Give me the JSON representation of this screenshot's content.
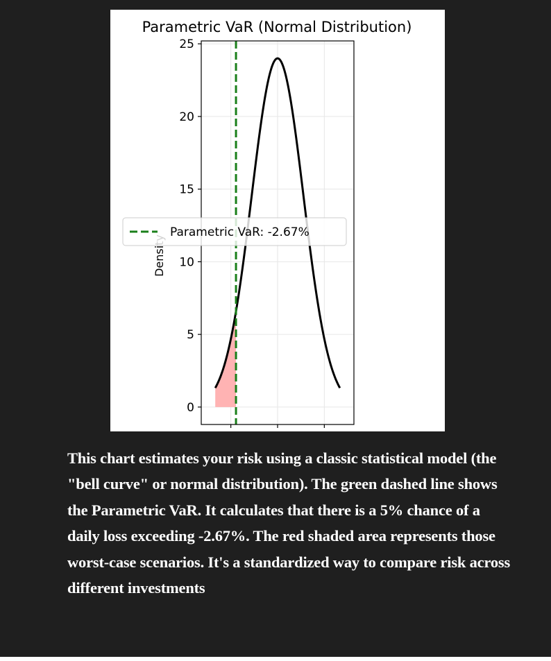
{
  "chart_data": {
    "type": "area",
    "title": "Parametric VaR (Normal Distribution)",
    "xlabel": "",
    "ylabel": "Density",
    "ylim": [
      -1.2,
      25.2
    ],
    "xlim": [
      -0.049,
      0.049
    ],
    "yticks": [
      0,
      5,
      10,
      15,
      20,
      25
    ],
    "xticks": [
      -0.03,
      0.0,
      0.03
    ],
    "xtick_labels_visible": false,
    "grid": true,
    "legend_position": "center-left",
    "distribution": {
      "mu": 0.0,
      "sigma": 0.0166,
      "peak_density": 24.0
    },
    "series": [
      {
        "name": "",
        "color": "#000000",
        "x": [
          -0.04,
          -0.035,
          -0.03,
          -0.025,
          -0.02,
          -0.015,
          -0.01,
          -0.005,
          0.0,
          0.005,
          0.01,
          0.015,
          0.02,
          0.025,
          0.03,
          0.035,
          0.04
        ],
        "y": [
          0.13,
          0.54,
          1.8,
          4.65,
          9.35,
          15.0,
          20.0,
          23.0,
          24.0,
          23.0,
          20.0,
          15.0,
          9.35,
          4.65,
          1.8,
          0.54,
          0.13
        ]
      }
    ],
    "var_line": {
      "label": "Parametric VaR: -2.67%",
      "x": -0.0267,
      "color": "#1a7f1a",
      "style": "dashed"
    },
    "shaded_tail": {
      "from": -0.04,
      "to": -0.0267,
      "color": "#ffb3b3"
    }
  },
  "caption": {
    "text": "This chart estimates your risk using a classic statistical model (the \"bell curve\" or normal distribution). The green dashed line shows the Parametric VaR. It calculates that there is a 5% chance of a daily loss exceeding -2.67%. The red shaded area represents those worst-case scenarios. It's a standardized way to compare risk across different investments"
  },
  "colors": {
    "background": "#1f1f1f",
    "caption_text": "#ffffff"
  }
}
